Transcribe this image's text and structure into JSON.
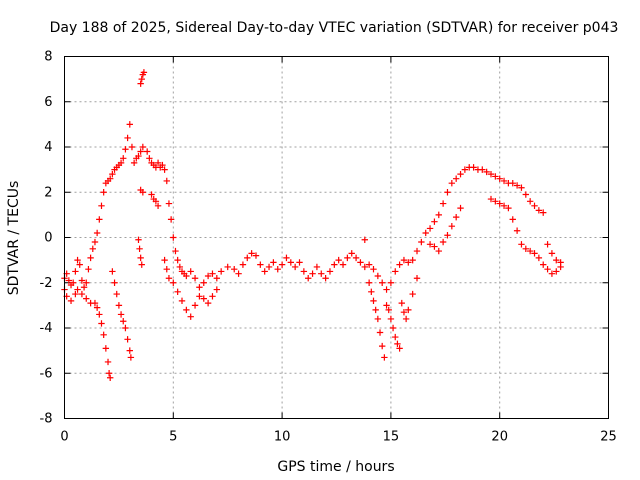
{
  "chart_data": {
    "type": "scatter",
    "title": "Day 188 of 2025, Sidereal Day-to-day VTEC variation (SDTVAR) for receiver p043",
    "xlabel": "GPS time / hours",
    "ylabel": "SDTVAR / TECUs",
    "xlim": [
      0,
      25
    ],
    "ylim": [
      -8,
      8
    ],
    "xticks": [
      0,
      5,
      10,
      15,
      20,
      25
    ],
    "yticks": [
      -8,
      -6,
      -4,
      -2,
      0,
      2,
      4,
      6,
      8
    ],
    "grid": true,
    "marker_color": "#ff0000",
    "marker": "plus",
    "series": [
      {
        "name": "p043-main-trace",
        "points": [
          [
            0.0,
            -1.8
          ],
          [
            0.1,
            -1.6
          ],
          [
            0.2,
            -1.9
          ],
          [
            0.3,
            -2.1
          ],
          [
            0.4,
            -2.0
          ],
          [
            0.5,
            -1.5
          ],
          [
            0.6,
            -1.0
          ],
          [
            0.7,
            -1.2
          ],
          [
            0.8,
            -1.9
          ],
          [
            0.9,
            -2.2
          ],
          [
            1.0,
            -2.0
          ],
          [
            1.1,
            -1.4
          ],
          [
            1.2,
            -0.9
          ],
          [
            1.3,
            -0.5
          ],
          [
            1.4,
            -0.2
          ],
          [
            1.5,
            0.2
          ],
          [
            1.6,
            0.8
          ],
          [
            1.7,
            1.4
          ],
          [
            1.8,
            2.0
          ],
          [
            1.9,
            2.4
          ],
          [
            2.0,
            2.5
          ],
          [
            2.1,
            2.6
          ],
          [
            2.2,
            2.8
          ],
          [
            2.3,
            3.0
          ],
          [
            2.4,
            3.1
          ],
          [
            2.5,
            3.2
          ],
          [
            2.6,
            3.3
          ],
          [
            2.7,
            3.5
          ],
          [
            2.8,
            3.9
          ],
          [
            2.9,
            4.4
          ],
          [
            3.0,
            5.0
          ],
          [
            3.1,
            4.0
          ],
          [
            3.2,
            3.3
          ],
          [
            3.3,
            3.5
          ],
          [
            3.4,
            3.6
          ],
          [
            3.5,
            3.8
          ],
          [
            3.6,
            4.0
          ],
          [
            3.8,
            3.8
          ],
          [
            3.9,
            3.5
          ],
          [
            4.0,
            3.3
          ],
          [
            4.1,
            3.2
          ],
          [
            4.2,
            3.1
          ],
          [
            4.3,
            3.3
          ],
          [
            4.4,
            3.1
          ],
          [
            4.5,
            3.2
          ],
          [
            4.6,
            3.0
          ],
          [
            4.7,
            2.5
          ],
          [
            4.8,
            1.5
          ],
          [
            4.9,
            0.8
          ],
          [
            5.0,
            0.0
          ],
          [
            5.1,
            -0.6
          ],
          [
            5.2,
            -1.0
          ],
          [
            5.3,
            -1.3
          ],
          [
            5.4,
            -1.5
          ],
          [
            5.5,
            -1.6
          ],
          [
            5.6,
            -1.7
          ],
          [
            5.8,
            -1.5
          ],
          [
            6.0,
            -1.8
          ],
          [
            6.2,
            -2.2
          ],
          [
            6.4,
            -2.0
          ],
          [
            6.6,
            -1.7
          ],
          [
            6.8,
            -1.6
          ],
          [
            7.0,
            -1.8
          ],
          [
            7.2,
            -1.5
          ],
          [
            7.5,
            -1.3
          ],
          [
            7.8,
            -1.4
          ],
          [
            8.0,
            -1.6
          ],
          [
            8.2,
            -1.2
          ],
          [
            8.4,
            -0.9
          ],
          [
            8.6,
            -0.7
          ],
          [
            8.8,
            -0.8
          ],
          [
            9.0,
            -1.2
          ],
          [
            9.2,
            -1.5
          ],
          [
            9.4,
            -1.3
          ],
          [
            9.6,
            -1.1
          ],
          [
            9.8,
            -1.4
          ],
          [
            10.0,
            -1.2
          ],
          [
            10.2,
            -0.9
          ],
          [
            10.4,
            -1.1
          ],
          [
            10.6,
            -1.3
          ],
          [
            10.8,
            -1.1
          ],
          [
            11.0,
            -1.5
          ],
          [
            11.2,
            -1.8
          ],
          [
            11.4,
            -1.6
          ],
          [
            11.6,
            -1.3
          ],
          [
            11.8,
            -1.6
          ],
          [
            12.0,
            -1.8
          ],
          [
            12.2,
            -1.5
          ],
          [
            12.4,
            -1.2
          ],
          [
            12.6,
            -1.0
          ],
          [
            12.8,
            -1.2
          ],
          [
            13.0,
            -0.9
          ],
          [
            13.2,
            -0.7
          ],
          [
            13.4,
            -0.9
          ],
          [
            13.6,
            -1.1
          ],
          [
            13.8,
            -1.3
          ],
          [
            14.0,
            -1.2
          ],
          [
            14.2,
            -1.4
          ],
          [
            14.4,
            -1.7
          ],
          [
            14.6,
            -2.0
          ],
          [
            14.8,
            -2.3
          ],
          [
            15.0,
            -2.0
          ],
          [
            15.2,
            -1.5
          ],
          [
            15.4,
            -1.2
          ],
          [
            15.6,
            -1.0
          ],
          [
            15.8,
            -1.1
          ],
          [
            16.0,
            -1.0
          ],
          [
            16.2,
            -0.6
          ],
          [
            16.4,
            -0.2
          ],
          [
            16.6,
            0.2
          ],
          [
            16.8,
            0.4
          ],
          [
            17.0,
            0.7
          ],
          [
            17.2,
            1.0
          ],
          [
            17.4,
            1.5
          ],
          [
            17.6,
            2.0
          ],
          [
            17.8,
            2.4
          ],
          [
            18.0,
            2.6
          ],
          [
            18.2,
            2.8
          ],
          [
            18.4,
            3.0
          ],
          [
            18.6,
            3.1
          ],
          [
            18.8,
            3.1
          ],
          [
            19.0,
            3.0
          ],
          [
            19.2,
            3.0
          ],
          [
            19.4,
            2.9
          ],
          [
            19.6,
            2.8
          ],
          [
            19.8,
            2.7
          ],
          [
            20.0,
            2.6
          ],
          [
            20.2,
            2.5
          ],
          [
            20.4,
            2.4
          ],
          [
            20.6,
            2.4
          ],
          [
            20.8,
            2.3
          ],
          [
            21.0,
            2.2
          ],
          [
            21.2,
            1.9
          ],
          [
            21.4,
            1.6
          ],
          [
            21.6,
            1.4
          ],
          [
            21.8,
            1.2
          ],
          [
            22.0,
            1.1
          ],
          [
            22.2,
            -0.3
          ],
          [
            22.4,
            -0.7
          ],
          [
            22.6,
            -1.0
          ],
          [
            22.8,
            -1.1
          ]
        ]
      },
      {
        "name": "p043-secondary-trace",
        "points": [
          [
            0.0,
            -2.3
          ],
          [
            0.1,
            -2.6
          ],
          [
            0.3,
            -2.8
          ],
          [
            0.5,
            -2.5
          ],
          [
            0.6,
            -2.3
          ],
          [
            0.8,
            -2.5
          ],
          [
            1.0,
            -2.7
          ],
          [
            1.2,
            -2.9
          ],
          [
            1.4,
            -2.9
          ],
          [
            1.5,
            -3.1
          ],
          [
            1.6,
            -3.4
          ],
          [
            1.7,
            -3.8
          ],
          [
            1.8,
            -4.3
          ],
          [
            1.9,
            -4.9
          ],
          [
            2.0,
            -5.5
          ],
          [
            2.05,
            -6.0
          ],
          [
            2.1,
            -6.2
          ],
          [
            2.2,
            -1.5
          ],
          [
            2.3,
            -2.0
          ],
          [
            2.4,
            -2.5
          ],
          [
            2.5,
            -3.0
          ],
          [
            2.6,
            -3.4
          ],
          [
            2.7,
            -3.7
          ],
          [
            2.8,
            -4.0
          ],
          [
            2.9,
            -4.5
          ],
          [
            3.0,
            -5.0
          ],
          [
            3.05,
            -5.3
          ],
          [
            3.4,
            -0.1
          ],
          [
            3.45,
            -0.5
          ],
          [
            3.5,
            -0.9
          ],
          [
            3.55,
            -1.2
          ],
          [
            3.5,
            6.8
          ],
          [
            3.55,
            7.0
          ],
          [
            3.6,
            7.2
          ],
          [
            3.65,
            7.3
          ],
          [
            3.5,
            2.1
          ],
          [
            3.6,
            2.0
          ],
          [
            4.0,
            1.9
          ],
          [
            4.1,
            1.7
          ],
          [
            4.2,
            1.6
          ],
          [
            4.3,
            1.4
          ],
          [
            4.6,
            -1.0
          ],
          [
            4.7,
            -1.4
          ],
          [
            4.8,
            -1.8
          ],
          [
            5.0,
            -2.0
          ],
          [
            5.2,
            -2.4
          ],
          [
            5.4,
            -2.8
          ],
          [
            5.6,
            -3.2
          ],
          [
            5.8,
            -3.5
          ],
          [
            6.0,
            -3.0
          ],
          [
            6.2,
            -2.6
          ],
          [
            6.4,
            -2.7
          ],
          [
            6.6,
            -2.9
          ],
          [
            6.8,
            -2.6
          ],
          [
            7.0,
            -2.3
          ],
          [
            13.8,
            -0.1
          ],
          [
            14.0,
            -2.0
          ],
          [
            14.1,
            -2.4
          ],
          [
            14.2,
            -2.8
          ],
          [
            14.3,
            -3.2
          ],
          [
            14.4,
            -3.6
          ],
          [
            14.5,
            -4.2
          ],
          [
            14.6,
            -4.8
          ],
          [
            14.7,
            -5.3
          ],
          [
            14.8,
            -3.0
          ],
          [
            14.9,
            -3.2
          ],
          [
            15.0,
            -3.6
          ],
          [
            15.1,
            -4.0
          ],
          [
            15.2,
            -4.4
          ],
          [
            15.3,
            -4.7
          ],
          [
            15.4,
            -4.9
          ],
          [
            15.5,
            -2.9
          ],
          [
            15.6,
            -3.3
          ],
          [
            15.7,
            -3.6
          ],
          [
            15.8,
            -3.2
          ],
          [
            16.0,
            -2.5
          ],
          [
            16.2,
            -1.8
          ],
          [
            16.8,
            -0.3
          ],
          [
            17.0,
            -0.4
          ],
          [
            17.2,
            -0.6
          ],
          [
            17.4,
            -0.2
          ],
          [
            17.6,
            0.1
          ],
          [
            17.8,
            0.5
          ],
          [
            18.0,
            0.9
          ],
          [
            18.2,
            1.3
          ],
          [
            19.6,
            1.7
          ],
          [
            19.8,
            1.6
          ],
          [
            20.0,
            1.5
          ],
          [
            20.2,
            1.4
          ],
          [
            20.4,
            1.3
          ],
          [
            20.6,
            0.8
          ],
          [
            20.8,
            0.3
          ],
          [
            21.0,
            -0.3
          ],
          [
            21.2,
            -0.5
          ],
          [
            21.4,
            -0.6
          ],
          [
            21.6,
            -0.7
          ],
          [
            21.8,
            -0.9
          ],
          [
            22.0,
            -1.2
          ],
          [
            22.2,
            -1.4
          ],
          [
            22.4,
            -1.6
          ],
          [
            22.6,
            -1.5
          ],
          [
            22.8,
            -1.3
          ]
        ]
      }
    ]
  }
}
